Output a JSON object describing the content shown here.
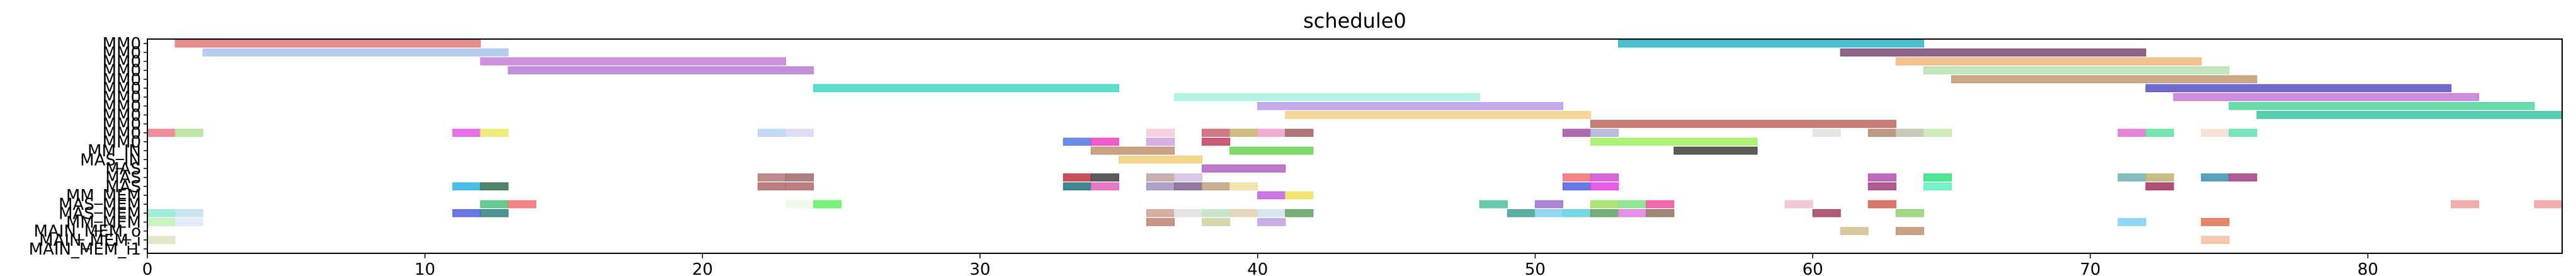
{
  "chart_data": {
    "type": "gantt",
    "title": "schedule0",
    "xlim": [
      0,
      87
    ],
    "xticks": [
      0,
      10,
      20,
      30,
      40,
      50,
      60,
      70,
      80
    ],
    "rows": [
      "MM0",
      "MM0",
      "MM0",
      "MM0",
      "MM0",
      "MM0",
      "MM0",
      "MM0",
      "MM0",
      "MM0",
      "MM0",
      "MM0",
      "MM_IN",
      "MAS_IN",
      "MAS",
      "MAS",
      "MAS",
      "MM_MEM",
      "MAS_MEM",
      "MAS_MEM",
      "MM_MEM",
      "MAIN_MEM_o",
      "MAIN_MEM_i",
      "MAIN_MEM_i1"
    ],
    "bars": [
      {
        "row": 0,
        "start": 1,
        "end": 12,
        "color": "#e07a7a"
      },
      {
        "row": 0,
        "start": 53,
        "end": 64,
        "color": "#2bb3c8"
      },
      {
        "row": 1,
        "start": 2,
        "end": 13,
        "color": "#a9c4ec"
      },
      {
        "row": 1,
        "start": 61,
        "end": 72,
        "color": "#7a4a74"
      },
      {
        "row": 2,
        "start": 12,
        "end": 23,
        "color": "#c77fd8"
      },
      {
        "row": 2,
        "start": 63,
        "end": 74,
        "color": "#f2b77a"
      },
      {
        "row": 3,
        "start": 13,
        "end": 24,
        "color": "#b67fd4"
      },
      {
        "row": 3,
        "start": 64,
        "end": 75,
        "color": "#b9e0b0"
      },
      {
        "row": 4,
        "start": 65,
        "end": 76,
        "color": "#c29a72"
      },
      {
        "row": 5,
        "start": 24,
        "end": 35,
        "color": "#3fd6c0"
      },
      {
        "row": 5,
        "start": 72,
        "end": 83,
        "color": "#5a4fc2"
      },
      {
        "row": 6,
        "start": 37,
        "end": 48,
        "color": "#a9f0e0"
      },
      {
        "row": 6,
        "start": 73,
        "end": 84,
        "color": "#c47ad6"
      },
      {
        "row": 7,
        "start": 40,
        "end": 51,
        "color": "#b99be6"
      },
      {
        "row": 7,
        "start": 75,
        "end": 86,
        "color": "#4fd69a"
      },
      {
        "row": 8,
        "start": 41,
        "end": 52,
        "color": "#f5d08a"
      },
      {
        "row": 8,
        "start": 76,
        "end": 87,
        "color": "#3ec4a0"
      },
      {
        "row": 9,
        "start": 52,
        "end": 63,
        "color": "#c0655e"
      },
      {
        "row": 10,
        "start": 0,
        "end": 1,
        "color": "#f07890"
      },
      {
        "row": 10,
        "start": 1,
        "end": 2,
        "color": "#b3e098"
      },
      {
        "row": 10,
        "start": 11,
        "end": 12,
        "color": "#e05ae0"
      },
      {
        "row": 10,
        "start": 12,
        "end": 13,
        "color": "#e8e86a"
      },
      {
        "row": 10,
        "start": 22,
        "end": 23,
        "color": "#b8d4f5"
      },
      {
        "row": 10,
        "start": 23,
        "end": 24,
        "color": "#d8d8f0"
      },
      {
        "row": 10,
        "start": 36,
        "end": 37,
        "color": "#f5c8dc"
      },
      {
        "row": 10,
        "start": 38,
        "end": 39,
        "color": "#c86070"
      },
      {
        "row": 10,
        "start": 39,
        "end": 40,
        "color": "#c8b070"
      },
      {
        "row": 10,
        "start": 40,
        "end": 41,
        "color": "#f0a0c8"
      },
      {
        "row": 10,
        "start": 41,
        "end": 42,
        "color": "#a06060"
      },
      {
        "row": 10,
        "start": 51,
        "end": 52,
        "color": "#a050a0"
      },
      {
        "row": 10,
        "start": 52,
        "end": 53,
        "color": "#b0b0d8"
      },
      {
        "row": 10,
        "start": 60,
        "end": 61,
        "color": "#e0e0e0"
      },
      {
        "row": 10,
        "start": 62,
        "end": 63,
        "color": "#b08870"
      },
      {
        "row": 10,
        "start": 63,
        "end": 64,
        "color": "#c0c0b0"
      },
      {
        "row": 10,
        "start": 64,
        "end": 65,
        "color": "#c8e8b0"
      },
      {
        "row": 10,
        "start": 71,
        "end": 72,
        "color": "#e070d0"
      },
      {
        "row": 10,
        "start": 72,
        "end": 73,
        "color": "#60e0a0"
      },
      {
        "row": 10,
        "start": 74,
        "end": 75,
        "color": "#f5e0d0"
      },
      {
        "row": 10,
        "start": 75,
        "end": 76,
        "color": "#60e0b0"
      },
      {
        "row": 11,
        "start": 33,
        "end": 34,
        "color": "#5078e0"
      },
      {
        "row": 11,
        "start": 34,
        "end": 35,
        "color": "#f040c0"
      },
      {
        "row": 11,
        "start": 36,
        "end": 37,
        "color": "#d0a0e0"
      },
      {
        "row": 11,
        "start": 38,
        "end": 39,
        "color": "#c04060"
      },
      {
        "row": 11,
        "start": 52,
        "end": 58,
        "color": "#a0f060"
      },
      {
        "row": 12,
        "start": 34,
        "end": 37,
        "color": "#c09070"
      },
      {
        "row": 12,
        "start": 39,
        "end": 42,
        "color": "#70d050"
      },
      {
        "row": 12,
        "start": 55,
        "end": 58,
        "color": "#404040"
      },
      {
        "row": 13,
        "start": 35,
        "end": 38,
        "color": "#f0d080"
      },
      {
        "row": 14,
        "start": 38,
        "end": 41,
        "color": "#b060c0"
      },
      {
        "row": 15,
        "start": 22,
        "end": 23,
        "color": "#b07878"
      },
      {
        "row": 15,
        "start": 23,
        "end": 24,
        "color": "#a06868"
      },
      {
        "row": 15,
        "start": 33,
        "end": 34,
        "color": "#c03040"
      },
      {
        "row": 15,
        "start": 34,
        "end": 35,
        "color": "#404040"
      },
      {
        "row": 15,
        "start": 36,
        "end": 37,
        "color": "#c0a0a0"
      },
      {
        "row": 15,
        "start": 37,
        "end": 38,
        "color": "#d0c0e0"
      },
      {
        "row": 15,
        "start": 51,
        "end": 52,
        "color": "#f07070"
      },
      {
        "row": 15,
        "start": 52,
        "end": 53,
        "color": "#d050d0"
      },
      {
        "row": 15,
        "start": 62,
        "end": 63,
        "color": "#b050b0"
      },
      {
        "row": 15,
        "start": 64,
        "end": 65,
        "color": "#30e080"
      },
      {
        "row": 15,
        "start": 71,
        "end": 72,
        "color": "#70b0b0"
      },
      {
        "row": 15,
        "start": 72,
        "end": 73,
        "color": "#c0b070"
      },
      {
        "row": 15,
        "start": 74,
        "end": 75,
        "color": "#4090b0"
      },
      {
        "row": 15,
        "start": 75,
        "end": 76,
        "color": "#a04080"
      },
      {
        "row": 16,
        "start": 11,
        "end": 12,
        "color": "#30b0e0"
      },
      {
        "row": 16,
        "start": 12,
        "end": 13,
        "color": "#307050"
      },
      {
        "row": 16,
        "start": 22,
        "end": 23,
        "color": "#b06868"
      },
      {
        "row": 16,
        "start": 23,
        "end": 24,
        "color": "#b06868"
      },
      {
        "row": 16,
        "start": 33,
        "end": 34,
        "color": "#207080"
      },
      {
        "row": 16,
        "start": 34,
        "end": 35,
        "color": "#e060c0"
      },
      {
        "row": 16,
        "start": 36,
        "end": 37,
        "color": "#a090c0"
      },
      {
        "row": 16,
        "start": 37,
        "end": 38,
        "color": "#806090"
      },
      {
        "row": 16,
        "start": 38,
        "end": 39,
        "color": "#c0a080"
      },
      {
        "row": 16,
        "start": 39,
        "end": 40,
        "color": "#f0e0a0"
      },
      {
        "row": 16,
        "start": 51,
        "end": 52,
        "color": "#5060e0"
      },
      {
        "row": 16,
        "start": 52,
        "end": 53,
        "color": "#e040e0"
      },
      {
        "row": 16,
        "start": 62,
        "end": 63,
        "color": "#a04080"
      },
      {
        "row": 16,
        "start": 64,
        "end": 65,
        "color": "#60f0c0"
      },
      {
        "row": 16,
        "start": 72,
        "end": 73,
        "color": "#a03060"
      },
      {
        "row": 17,
        "start": 40,
        "end": 41,
        "color": "#c060e0"
      },
      {
        "row": 17,
        "start": 41,
        "end": 42,
        "color": "#f0e060"
      },
      {
        "row": 18,
        "start": 12,
        "end": 13,
        "color": "#4ec080"
      },
      {
        "row": 18,
        "start": 13,
        "end": 14,
        "color": "#f07070"
      },
      {
        "row": 18,
        "start": 23,
        "end": 24,
        "color": "#eef8e8"
      },
      {
        "row": 18,
        "start": 24,
        "end": 25,
        "color": "#60f060"
      },
      {
        "row": 18,
        "start": 48,
        "end": 49,
        "color": "#50c0a0"
      },
      {
        "row": 18,
        "start": 50,
        "end": 51,
        "color": "#a070d0"
      },
      {
        "row": 18,
        "start": 52,
        "end": 53,
        "color": "#a0e060"
      },
      {
        "row": 18,
        "start": 53,
        "end": 54,
        "color": "#80e080"
      },
      {
        "row": 18,
        "start": 54,
        "end": 55,
        "color": "#f050a0"
      },
      {
        "row": 18,
        "start": 59,
        "end": 60,
        "color": "#f0c0d0"
      },
      {
        "row": 18,
        "start": 62,
        "end": 63,
        "color": "#d06050"
      },
      {
        "row": 18,
        "start": 83,
        "end": 84,
        "color": "#f0a0a0"
      },
      {
        "row": 18,
        "start": 86,
        "end": 87,
        "color": "#f0a0a0"
      },
      {
        "row": 19,
        "start": 0,
        "end": 1,
        "color": "#90e8d0"
      },
      {
        "row": 19,
        "start": 1,
        "end": 2,
        "color": "#c0e0f0"
      },
      {
        "row": 19,
        "start": 11,
        "end": 12,
        "color": "#5060e0"
      },
      {
        "row": 19,
        "start": 12,
        "end": 13,
        "color": "#308080"
      },
      {
        "row": 19,
        "start": 36,
        "end": 37,
        "color": "#d0a090"
      },
      {
        "row": 19,
        "start": 37,
        "end": 38,
        "color": "#e0e0e0"
      },
      {
        "row": 19,
        "start": 38,
        "end": 39,
        "color": "#c0e0c0"
      },
      {
        "row": 19,
        "start": 39,
        "end": 40,
        "color": "#e0d0b0"
      },
      {
        "row": 19,
        "start": 40,
        "end": 41,
        "color": "#d0e0f0"
      },
      {
        "row": 19,
        "start": 41,
        "end": 42,
        "color": "#60a060"
      },
      {
        "row": 19,
        "start": 49,
        "end": 50,
        "color": "#40a090"
      },
      {
        "row": 19,
        "start": 50,
        "end": 51,
        "color": "#80d0f0"
      },
      {
        "row": 19,
        "start": 51,
        "end": 52,
        "color": "#60d0e0"
      },
      {
        "row": 19,
        "start": 52,
        "end": 53,
        "color": "#60a060"
      },
      {
        "row": 19,
        "start": 53,
        "end": 54,
        "color": "#e080e0"
      },
      {
        "row": 19,
        "start": 54,
        "end": 55,
        "color": "#907060"
      },
      {
        "row": 19,
        "start": 60,
        "end": 61,
        "color": "#a04060"
      },
      {
        "row": 19,
        "start": 63,
        "end": 64,
        "color": "#90d070"
      },
      {
        "row": 20,
        "start": 0,
        "end": 1,
        "color": "#c0f0b0"
      },
      {
        "row": 20,
        "start": 1,
        "end": 2,
        "color": "#e0e8f8"
      },
      {
        "row": 20,
        "start": 36,
        "end": 37,
        "color": "#c08070"
      },
      {
        "row": 20,
        "start": 38,
        "end": 39,
        "color": "#d0d0a0"
      },
      {
        "row": 20,
        "start": 40,
        "end": 41,
        "color": "#c0a0e0"
      },
      {
        "row": 20,
        "start": 71,
        "end": 72,
        "color": "#80d0f0"
      },
      {
        "row": 20,
        "start": 74,
        "end": 75,
        "color": "#e07050"
      },
      {
        "row": 21,
        "start": 61,
        "end": 62,
        "color": "#d0c090"
      },
      {
        "row": 21,
        "start": 63,
        "end": 64,
        "color": "#c09070"
      },
      {
        "row": 22,
        "start": 0,
        "end": 1,
        "color": "#e0e0c0"
      },
      {
        "row": 22,
        "start": 74,
        "end": 75,
        "color": "#f0c0a0"
      }
    ]
  }
}
